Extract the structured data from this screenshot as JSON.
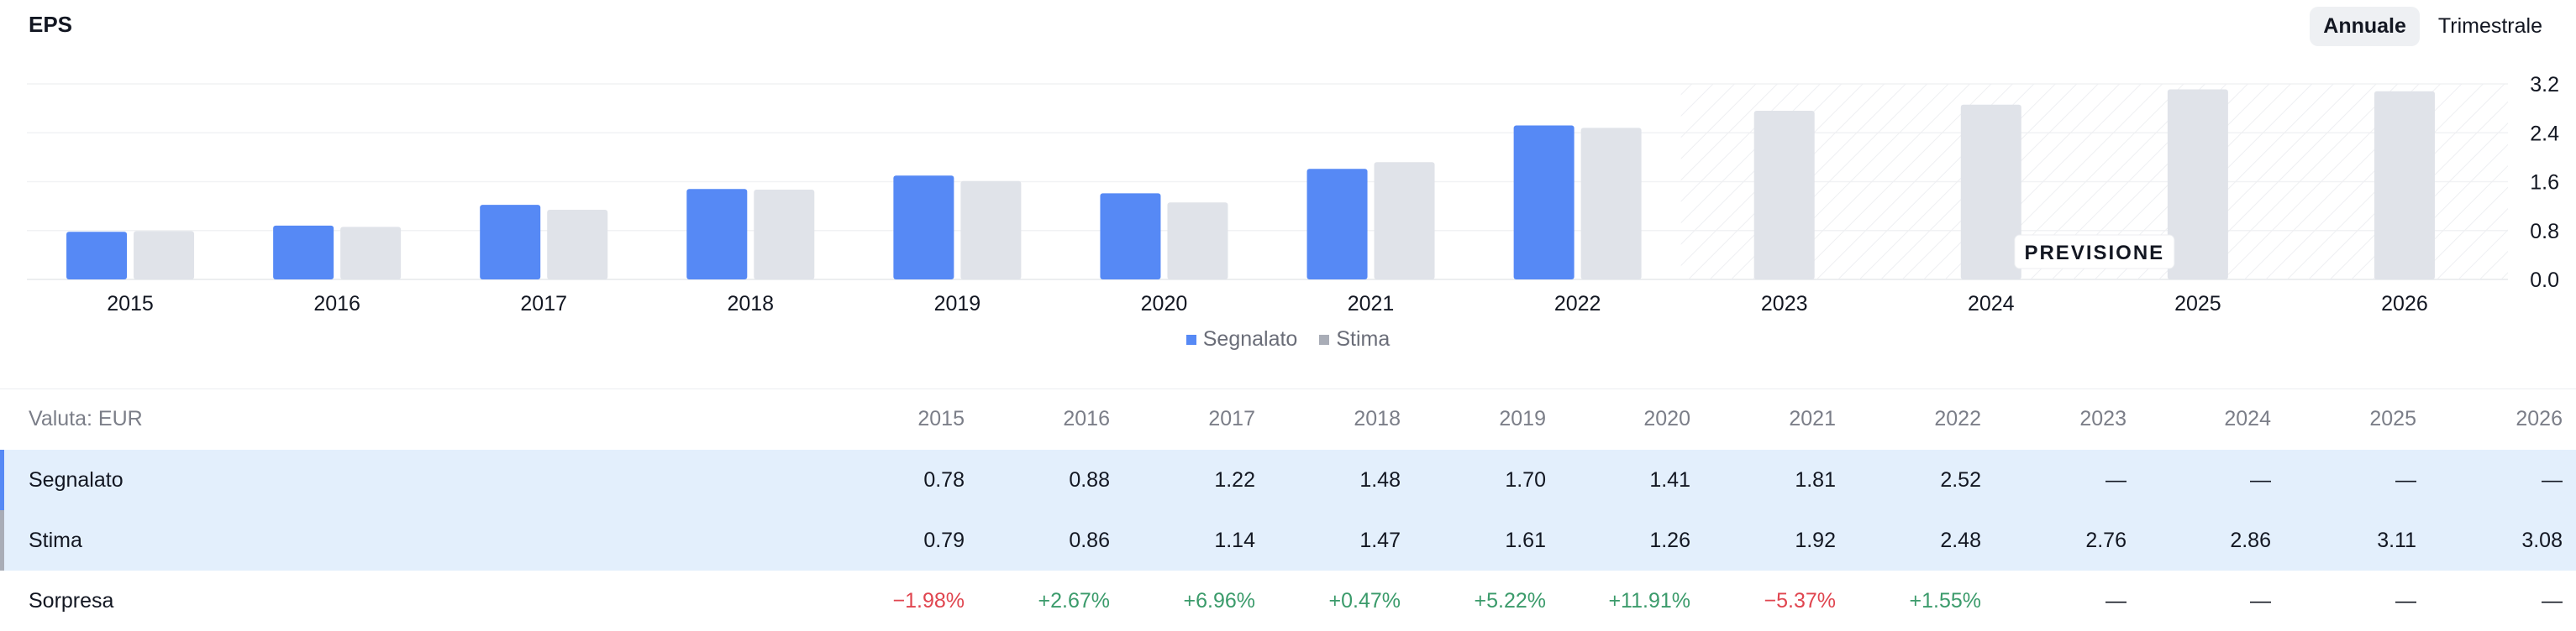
{
  "title": "EPS",
  "toggle": {
    "annual": "Annuale",
    "quarterly": "Trimestrale",
    "active": "annual"
  },
  "forecast_label": "PREVISIONE",
  "colors": {
    "reported": "#5689f5",
    "estimate": "#e0e3e9",
    "positive": "#3b9b6b",
    "negative": "#e0454f",
    "row_highlight": "#e3effc"
  },
  "chart_data": {
    "type": "bar",
    "title": "EPS",
    "categories": [
      "2015",
      "2016",
      "2017",
      "2018",
      "2019",
      "2020",
      "2021",
      "2022",
      "2023",
      "2024",
      "2025",
      "2026"
    ],
    "series": [
      {
        "name": "Segnalato",
        "values": [
          0.78,
          0.88,
          1.22,
          1.48,
          1.7,
          1.41,
          1.81,
          2.52,
          null,
          null,
          null,
          null
        ]
      },
      {
        "name": "Stima",
        "values": [
          0.79,
          0.86,
          1.14,
          1.47,
          1.61,
          1.26,
          1.92,
          2.48,
          2.76,
          2.86,
          3.11,
          3.08
        ]
      }
    ],
    "y_ticks": [
      "3.2",
      "2.4",
      "1.6",
      "0.8",
      "0.0"
    ],
    "ylim": [
      0,
      3.2
    ],
    "forecast_categories": [
      "2023",
      "2024",
      "2025",
      "2026"
    ],
    "legend": [
      "Segnalato",
      "Stima"
    ],
    "legend_position": "bottom-center",
    "grid": true
  },
  "table": {
    "currency_label": "Valuta: EUR",
    "years": [
      "2015",
      "2016",
      "2017",
      "2018",
      "2019",
      "2020",
      "2021",
      "2022",
      "2023",
      "2024",
      "2025",
      "2026"
    ],
    "rows": [
      {
        "label": "Segnalato",
        "values": [
          "0.78",
          "0.88",
          "1.22",
          "1.48",
          "1.70",
          "1.41",
          "1.81",
          "2.52",
          "—",
          "—",
          "—",
          "—"
        ]
      },
      {
        "label": "Stima",
        "values": [
          "0.79",
          "0.86",
          "1.14",
          "1.47",
          "1.61",
          "1.26",
          "1.92",
          "2.48",
          "2.76",
          "2.86",
          "3.11",
          "3.08"
        ]
      },
      {
        "label": "Sorpresa",
        "values": [
          "−1.98%",
          "+2.67%",
          "+6.96%",
          "+0.47%",
          "+5.22%",
          "+11.91%",
          "−5.37%",
          "+1.55%",
          "—",
          "—",
          "—",
          "—"
        ]
      }
    ]
  }
}
